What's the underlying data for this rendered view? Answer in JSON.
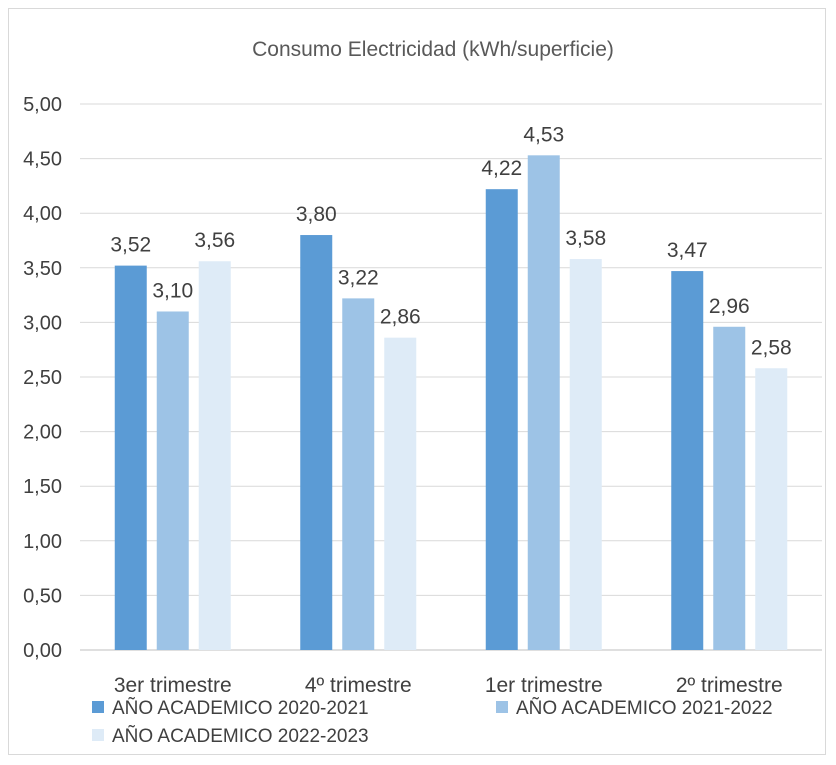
{
  "chart_data": {
    "type": "bar",
    "title": "Consumo Electricidad (kWh/superficie)",
    "xlabel": "",
    "ylabel": "",
    "categories": [
      "3er trimestre",
      "4º trimestre",
      "1er trimestre",
      "2º trimestre"
    ],
    "ylim": [
      0,
      5
    ],
    "yticks": [
      "0,00",
      "0,50",
      "1,00",
      "1,50",
      "2,00",
      "2,50",
      "3,00",
      "3,50",
      "4,00",
      "4,50",
      "5,00"
    ],
    "grid": true,
    "legend_position": "bottom",
    "series": [
      {
        "name": "AÑO ACADEMICO 2020-2021",
        "color": "#5b9bd5",
        "values": [
          3.52,
          3.8,
          4.22,
          3.47
        ],
        "labels": [
          "3,52",
          "3,80",
          "4,22",
          "3,47"
        ]
      },
      {
        "name": "AÑO ACADEMICO 2021-2022",
        "color": "#9dc3e6",
        "values": [
          3.1,
          3.22,
          4.53,
          2.96
        ],
        "labels": [
          "3,10",
          "3,22",
          "4,53",
          "2,96"
        ]
      },
      {
        "name": "AÑO ACADEMICO 2022-2023",
        "color": "#deebf7",
        "values": [
          3.56,
          2.86,
          3.58,
          2.58
        ],
        "labels": [
          "3,56",
          "2,86",
          "3,58",
          "2,58"
        ]
      }
    ]
  }
}
